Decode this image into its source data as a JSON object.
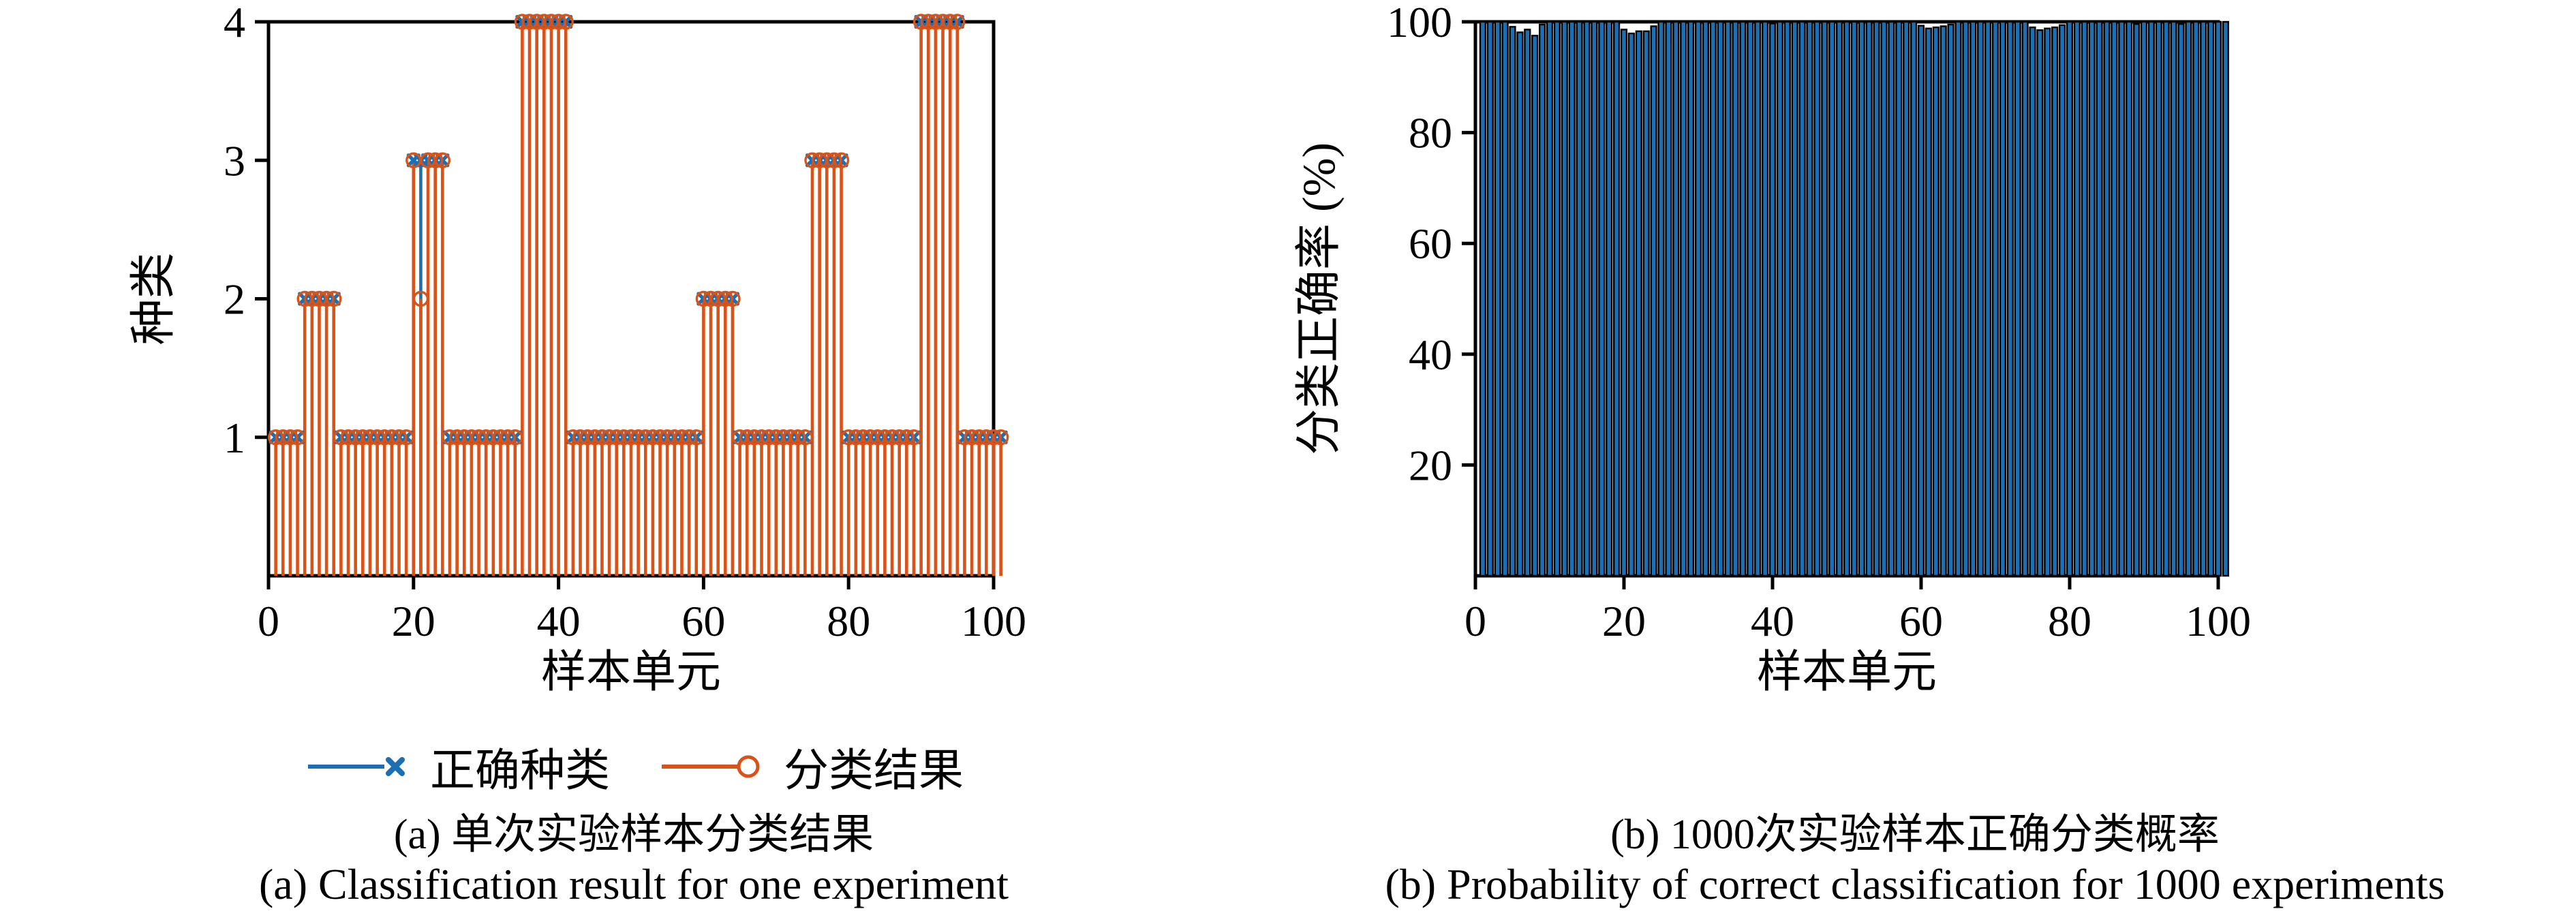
{
  "colors": {
    "blue": "#1B6FB4",
    "orange": "#D95319",
    "axis": "#000000",
    "bar_fill": "#1B6FB4",
    "bar_edge": "#000000"
  },
  "chart_data": [
    {
      "type": "stem",
      "panel": "a",
      "xlabel": "样本单元",
      "ylabel": "种类",
      "xlim": [
        0,
        100
      ],
      "ylim": [
        0,
        4
      ],
      "xticks": [
        0,
        20,
        40,
        60,
        80,
        100
      ],
      "yticks": [
        1,
        2,
        3,
        4
      ],
      "grid": false,
      "legend_position": "below-center",
      "legend": [
        {
          "label": "正确种类",
          "marker": "x",
          "color_key": "blue"
        },
        {
          "label": "分类结果",
          "marker": "circle",
          "color_key": "orange"
        }
      ],
      "caption_zh": "(a) 单次实验样本分类结果",
      "caption_en": "(a) Classification result for one experiment",
      "n_samples": 101,
      "true_class": [
        1,
        1,
        1,
        1,
        2,
        2,
        2,
        2,
        2,
        1,
        1,
        1,
        1,
        1,
        1,
        1,
        1,
        1,
        1,
        3,
        3,
        3,
        3,
        3,
        1,
        1,
        1,
        1,
        1,
        1,
        1,
        1,
        1,
        1,
        4,
        4,
        4,
        4,
        4,
        4,
        4,
        1,
        1,
        1,
        1,
        1,
        1,
        1,
        1,
        1,
        1,
        1,
        1,
        1,
        1,
        1,
        1,
        1,
        1,
        2,
        2,
        2,
        2,
        2,
        1,
        1,
        1,
        1,
        1,
        1,
        1,
        1,
        1,
        1,
        3,
        3,
        3,
        3,
        3,
        1,
        1,
        1,
        1,
        1,
        1,
        1,
        1,
        1,
        1,
        4,
        4,
        4,
        4,
        4,
        4,
        1,
        1,
        1,
        1,
        1,
        1
      ],
      "classified": [
        1,
        1,
        1,
        1,
        2,
        2,
        2,
        2,
        2,
        1,
        1,
        1,
        1,
        1,
        1,
        1,
        1,
        1,
        1,
        3,
        2,
        3,
        3,
        3,
        1,
        1,
        1,
        1,
        1,
        1,
        1,
        1,
        1,
        1,
        4,
        4,
        4,
        4,
        4,
        4,
        4,
        1,
        1,
        1,
        1,
        1,
        1,
        1,
        1,
        1,
        1,
        1,
        1,
        1,
        1,
        1,
        1,
        1,
        1,
        2,
        2,
        2,
        2,
        2,
        1,
        1,
        1,
        1,
        1,
        1,
        1,
        1,
        1,
        1,
        3,
        3,
        3,
        3,
        3,
        1,
        1,
        1,
        1,
        1,
        1,
        1,
        1,
        1,
        1,
        4,
        4,
        4,
        4,
        4,
        4,
        1,
        1,
        1,
        1,
        1,
        1
      ],
      "misclassified_sample": 21
    },
    {
      "type": "bar",
      "panel": "b",
      "xlabel": "样本单元",
      "ylabel": "分类正确率 (%)",
      "xlim": [
        0,
        100
      ],
      "ylim": [
        0,
        100
      ],
      "xticks": [
        0,
        20,
        40,
        60,
        80,
        100
      ],
      "yticks": [
        20,
        40,
        60,
        80,
        100
      ],
      "grid": false,
      "caption_zh": "(b) 1000次实验样本正确分类概率",
      "caption_en": "(b) Probability of correct classification for 1000 experiments",
      "n_samples": 101,
      "values": [
        100,
        100,
        100,
        100,
        99.1,
        98.1,
        98.6,
        97.5,
        99.5,
        100,
        100,
        100,
        100,
        100,
        100,
        100,
        100,
        100,
        100,
        98.6,
        97.9,
        98.3,
        98.3,
        99.2,
        100,
        100,
        100,
        100,
        100,
        100,
        100,
        100,
        100,
        100,
        100,
        100,
        100,
        100,
        100,
        99.7,
        100,
        100,
        100,
        100,
        100,
        100,
        100,
        100,
        100,
        100,
        100,
        100,
        100,
        100,
        100,
        100,
        100,
        100,
        100,
        99.3,
        98.8,
        99.0,
        99.2,
        99.5,
        100,
        100,
        100,
        100,
        100,
        100,
        100,
        100,
        100,
        100,
        99.0,
        98.5,
        98.8,
        99.0,
        99.4,
        100,
        100,
        100,
        100,
        100,
        100,
        100,
        100,
        100,
        99.6,
        100,
        100,
        100,
        100,
        100,
        99.6,
        100,
        100,
        100,
        100,
        100,
        100
      ]
    }
  ]
}
